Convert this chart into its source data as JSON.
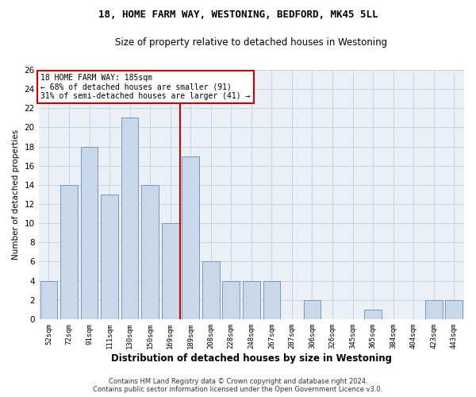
{
  "title1": "18, HOME FARM WAY, WESTONING, BEDFORD, MK45 5LL",
  "title2": "Size of property relative to detached houses in Westoning",
  "xlabel": "Distribution of detached houses by size in Westoning",
  "ylabel": "Number of detached properties",
  "categories": [
    "52sqm",
    "72sqm",
    "91sqm",
    "111sqm",
    "130sqm",
    "150sqm",
    "169sqm",
    "189sqm",
    "208sqm",
    "228sqm",
    "248sqm",
    "267sqm",
    "287sqm",
    "306sqm",
    "326sqm",
    "345sqm",
    "365sqm",
    "384sqm",
    "404sqm",
    "423sqm",
    "443sqm"
  ],
  "values": [
    4,
    14,
    18,
    13,
    21,
    14,
    10,
    17,
    6,
    4,
    4,
    4,
    0,
    2,
    0,
    0,
    1,
    0,
    0,
    2,
    2
  ],
  "bar_color": "#c8d8ea",
  "bar_edge_color": "#6090b0",
  "highlight_index": 7,
  "highlight_color": "#cc0000",
  "annotation_title": "18 HOME FARM WAY: 185sqm",
  "annotation_line1": "← 68% of detached houses are smaller (91)",
  "annotation_line2": "31% of semi-detached houses are larger (41) →",
  "annotation_box_color": "#ffffff",
  "annotation_box_edge": "#cc0000",
  "footer1": "Contains HM Land Registry data © Crown copyright and database right 2024.",
  "footer2": "Contains public sector information licensed under the Open Government Licence v3.0.",
  "ylim": [
    0,
    26
  ],
  "yticks": [
    0,
    2,
    4,
    6,
    8,
    10,
    12,
    14,
    16,
    18,
    20,
    22,
    24,
    26
  ],
  "grid_color": "#c8d4e0",
  "bg_color": "#eaf0f6"
}
